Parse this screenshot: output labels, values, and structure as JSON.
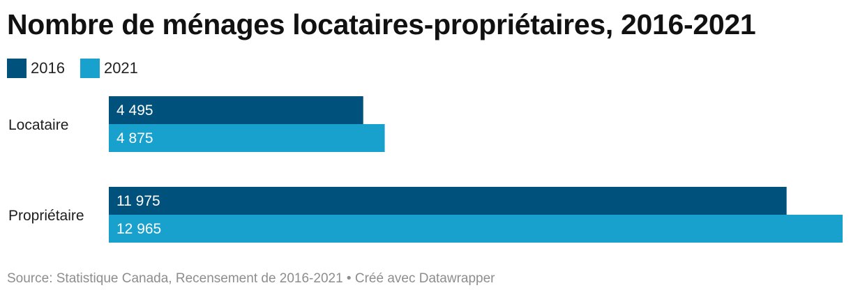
{
  "title": "Nombre de ménages locataires-propriétaires, 2016-2021",
  "source": "Source: Statistique Canada, Recensement de 2016-2021 • Créé avec Datawrapper",
  "chart_data": {
    "type": "bar",
    "orientation": "horizontal",
    "title": "Nombre de ménages locataires-propriétaires, 2016-2021",
    "categories": [
      "Locataire",
      "Propriétaire"
    ],
    "series": [
      {
        "name": "2016",
        "color": "#00527c",
        "values": [
          4495,
          11975
        ],
        "labels": [
          "4 495",
          "11 975"
        ]
      },
      {
        "name": "2021",
        "color": "#18a1cd",
        "values": [
          4875,
          12965
        ],
        "labels": [
          "4 875",
          "12 965"
        ]
      }
    ],
    "xlim": [
      0,
      12965
    ],
    "legend": "top-left",
    "grid": false
  }
}
